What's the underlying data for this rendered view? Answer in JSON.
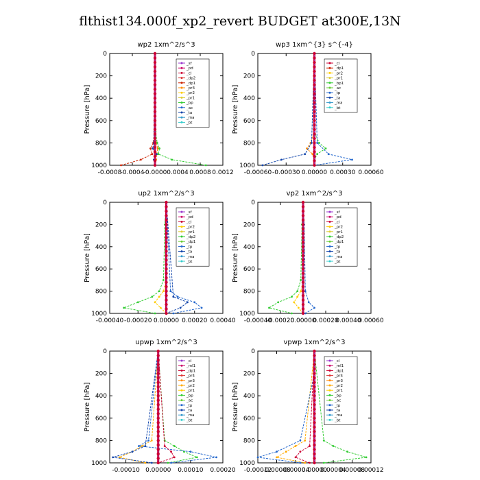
{
  "title": "flthist134.000f_xp2_revert  BUDGET at300E,13N",
  "chart_data": [
    {
      "type": "line",
      "title": "wp2   1xm^2/s^3",
      "ylabel": "Pressure  [hPa]",
      "ylim": [
        1000,
        0
      ],
      "yticks": [
        "0",
        "200",
        "400",
        "600",
        "800",
        "1000"
      ],
      "xlim": [
        -0.0008,
        0.0012
      ],
      "xticks": [
        "-0.0008",
        "-0.0004",
        "-0.0000",
        "0.0004",
        "0.0008",
        "0.0012"
      ],
      "legend": [
        "_sf",
        "_pd",
        "_cl",
        "_dp2",
        "_dp1",
        "_pr3",
        "_pr2",
        "_pr1",
        "_bp",
        "_ac",
        "_ta",
        "_ma",
        "_bt"
      ],
      "legend_colors": [
        "#9933cc",
        "#cc0066",
        "#cc0033",
        "#dd3333",
        "#cc2200",
        "#ff8800",
        "#ffcc00",
        "#ddcc33",
        "#33cc33",
        "#2266cc",
        "#1144aa",
        "#3399cc",
        "#33cccc"
      ],
      "series": [
        {
          "name": "_dp1",
          "color": "#cc2200",
          "p": [
            0,
            700,
            800,
            850,
            900,
            950,
            1000
          ],
          "v": [
            0,
            -1e-05,
            -3e-05,
            -8e-05,
            -5e-05,
            -0.00025,
            -0.0006
          ]
        },
        {
          "name": "_pr3",
          "color": "#ff8800",
          "p": [
            0,
            800,
            850,
            900,
            950,
            1000
          ],
          "v": [
            0,
            2e-05,
            5e-05,
            3e-05,
            2e-05,
            1e-05
          ]
        },
        {
          "name": "_bp",
          "color": "#33cc33",
          "p": [
            0,
            700,
            800,
            850,
            900,
            950,
            1000
          ],
          "v": [
            0,
            1e-05,
            4e-05,
            8e-05,
            6e-05,
            0.0003,
            0.0009
          ]
        },
        {
          "name": "_ta",
          "color": "#1144aa",
          "p": [
            0,
            800,
            850,
            900,
            950,
            1000
          ],
          "v": [
            0,
            -2e-05,
            -4e-05,
            3e-05,
            -2e-05,
            1e-05
          ]
        },
        {
          "name": "_bt",
          "color": "#33cccc",
          "p": [
            0,
            1000
          ],
          "v": [
            0,
            0
          ]
        }
      ]
    },
    {
      "type": "line",
      "title": "wp3   1xm^{3} s^{-4}",
      "ylabel": "Pressure  [hPa]",
      "ylim": [
        1000,
        0
      ],
      "yticks": [
        "0",
        "200",
        "400",
        "600",
        "800",
        "1000"
      ],
      "xlim": [
        -0.0006,
        0.0006
      ],
      "xticks": [
        "-0.00060",
        "-0.00030",
        "0.00000",
        "0.00030",
        "0.00060"
      ],
      "legend": [
        "_cl",
        "_dp1",
        "_pr2",
        "_pr1",
        "_bp1",
        "_ac",
        "_tp",
        "_ta",
        "_ma",
        "_bt"
      ],
      "legend_colors": [
        "#cc0033",
        "#cc2200",
        "#ffcc00",
        "#ddcc33",
        "#33cc33",
        "#66cc33",
        "#2266cc",
        "#1144aa",
        "#3399cc",
        "#33cccc"
      ],
      "series": [
        {
          "name": "_pr2",
          "color": "#ff8800",
          "p": [
            0,
            700,
            800,
            850,
            900,
            950,
            1000
          ],
          "v": [
            0,
            0,
            -4e-05,
            -8e-05,
            -2e-05,
            0,
            0
          ]
        },
        {
          "name": "_bp1",
          "color": "#33cc33",
          "p": [
            0,
            700,
            800,
            850,
            900,
            950,
            1000
          ],
          "v": [
            0,
            0,
            5e-05,
            0.00012,
            3e-05,
            0,
            0
          ]
        },
        {
          "name": "_tp",
          "color": "#2266cc",
          "p": [
            0,
            800,
            900,
            950,
            1000
          ],
          "v": [
            0,
            3e-05,
            0.00015,
            0.0004,
            0
          ]
        },
        {
          "name": "_ta",
          "color": "#1144aa",
          "p": [
            0,
            800,
            900,
            950,
            1000
          ],
          "v": [
            0,
            -3e-05,
            -0.0001,
            -0.00035,
            -0.00055
          ]
        },
        {
          "name": "_cl",
          "color": "#cc0033",
          "p": [
            0,
            1000
          ],
          "v": [
            0,
            0
          ]
        }
      ]
    },
    {
      "type": "line",
      "title": "up2   1xm^2/s^3",
      "ylabel": "Pressure  [hPa]",
      "ylim": [
        1000,
        0
      ],
      "yticks": [
        "0",
        "200",
        "400",
        "600",
        "800",
        "1000"
      ],
      "xlim": [
        -0.0004,
        0.0004
      ],
      "xticks": [
        "-0.00040",
        "-0.00020",
        "0.00000",
        "0.00020",
        "0.00040"
      ],
      "legend": [
        "_sf",
        "_pd",
        "_cl",
        "_pr2",
        "_pr1",
        "_dp2",
        "_dp1",
        "_tp",
        "_ta",
        "_ma",
        "_bt"
      ],
      "legend_colors": [
        "#9933cc",
        "#cc0066",
        "#cc0033",
        "#ffcc00",
        "#ddcc33",
        "#33cc33",
        "#66cc33",
        "#2266cc",
        "#1144aa",
        "#3399cc",
        "#33cccc"
      ],
      "series": [
        {
          "name": "_pr1",
          "color": "#ffcc00",
          "p": [
            0,
            700,
            800,
            850,
            900,
            950,
            1000
          ],
          "v": [
            0,
            0,
            -2e-05,
            -5e-05,
            -8e-05,
            -4e-05,
            0
          ]
        },
        {
          "name": "_dp2",
          "color": "#33cc33",
          "p": [
            0,
            200,
            700,
            800,
            850,
            900,
            950,
            1000
          ],
          "v": [
            0,
            -1e-05,
            -2e-05,
            -5e-05,
            -0.0001,
            -0.0002,
            -0.0003,
            -8e-05
          ]
        },
        {
          "name": "_tp",
          "color": "#2266cc",
          "p": [
            0,
            800,
            850,
            900,
            950,
            1000
          ],
          "v": [
            0,
            3e-05,
            8e-05,
            0.0002,
            0.00025,
            5e-05
          ]
        },
        {
          "name": "_ta",
          "color": "#1144aa",
          "p": [
            0,
            850,
            900,
            950,
            1000
          ],
          "v": [
            0,
            5e-05,
            0.00015,
            0.0001,
            0
          ]
        },
        {
          "name": "_cl",
          "color": "#cc0033",
          "p": [
            0,
            1000
          ],
          "v": [
            0,
            0
          ]
        }
      ]
    },
    {
      "type": "line",
      "title": "vp2   1xm^2/s^3",
      "ylabel": "Pressure  [hPa]",
      "ylim": [
        1000,
        0
      ],
      "yticks": [
        "0",
        "200",
        "400",
        "600",
        "800",
        "1000"
      ],
      "xlim": [
        -0.0004,
        0.0006
      ],
      "xticks": [
        "-0.00040",
        "-0.00020",
        "0.00000",
        "0.00020",
        "0.00040",
        "0.00060"
      ],
      "legend": [
        "_sf",
        "_pd",
        "_cl",
        "_pr2",
        "_pr1",
        "_dp2",
        "_dp1",
        "_tp",
        "_ta",
        "_ma",
        "_bt"
      ],
      "legend_colors": [
        "#9933cc",
        "#cc0066",
        "#cc0033",
        "#ffcc00",
        "#ddcc33",
        "#33cc33",
        "#66cc33",
        "#2266cc",
        "#1144aa",
        "#3399cc",
        "#33cccc"
      ],
      "series": [
        {
          "name": "_pr1",
          "color": "#ffcc00",
          "p": [
            0,
            700,
            800,
            850,
            900,
            950,
            1000
          ],
          "v": [
            0,
            0,
            -2e-05,
            -5e-05,
            -8e-05,
            -4e-05,
            0
          ]
        },
        {
          "name": "_dp2",
          "color": "#33cc33",
          "p": [
            0,
            200,
            700,
            800,
            850,
            900,
            950,
            1000
          ],
          "v": [
            0,
            -1e-05,
            -2e-05,
            -5e-05,
            -0.0001,
            -0.00022,
            -0.0003,
            -0.0001
          ]
        },
        {
          "name": "_tp",
          "color": "#2266cc",
          "p": [
            0,
            200,
            800,
            900,
            950,
            1000
          ],
          "v": [
            0,
            1e-05,
            2e-05,
            5e-05,
            0.0001,
            2e-05
          ]
        },
        {
          "name": "_cl",
          "color": "#cc0033",
          "p": [
            0,
            1000
          ],
          "v": [
            0,
            0
          ]
        }
      ]
    },
    {
      "type": "line",
      "title": "upwp   1xm^2/s^3",
      "ylabel": "Pressure  [hPa]",
      "ylim": [
        1000,
        0
      ],
      "yticks": [
        "0",
        "200",
        "400",
        "600",
        "800",
        "1000"
      ],
      "xlim": [
        -0.00015,
        0.0002
      ],
      "xticks": [
        "-0.00010",
        "0.00000",
        "0.00010",
        "0.00020"
      ],
      "legend": [
        "_cl",
        "_ml1",
        "_dp1",
        "_pr4",
        "_pr3",
        "_pr2",
        "_pr1",
        "_bp",
        "_ac",
        "_tp",
        "_ta",
        "_ma",
        "_bt"
      ],
      "legend_colors": [
        "#9933cc",
        "#cc0066",
        "#cc0033",
        "#dd3333",
        "#ff8800",
        "#ffaa00",
        "#ffcc00",
        "#33cc33",
        "#66cc33",
        "#2266cc",
        "#1144aa",
        "#3399cc",
        "#33cccc"
      ],
      "series": [
        {
          "name": "_pr2",
          "color": "#ffaa00",
          "p": [
            0,
            800,
            850,
            900,
            950,
            1000
          ],
          "v": [
            0,
            -2e-05,
            -5e-05,
            -8e-05,
            -0.00012,
            -4e-05
          ]
        },
        {
          "name": "_bp",
          "color": "#33cc33",
          "p": [
            0,
            800,
            850,
            900,
            950,
            1000
          ],
          "v": [
            0,
            2e-05,
            5e-05,
            8e-05,
            0.00012,
            3e-05
          ]
        },
        {
          "name": "_tp",
          "color": "#2266cc",
          "p": [
            0,
            800,
            850,
            900,
            950,
            1000
          ],
          "v": [
            0,
            -3e-05,
            -6e-05,
            0.0001,
            0.00018,
            4e-05
          ]
        },
        {
          "name": "_ta",
          "color": "#1144aa",
          "p": [
            0,
            850,
            900,
            950,
            1000
          ],
          "v": [
            0,
            -4e-05,
            -8e-05,
            -0.00014,
            -2e-05
          ]
        },
        {
          "name": "_dp1",
          "color": "#cc0033",
          "p": [
            0,
            850,
            900,
            950,
            1000
          ],
          "v": [
            0,
            2e-05,
            4e-05,
            5e-05,
            0
          ]
        }
      ]
    },
    {
      "type": "line",
      "title": "vpwp   1xm^2/s^3",
      "ylabel": "Pressure  [hPa]",
      "ylim": [
        1000,
        0
      ],
      "yticks": [
        "0",
        "200",
        "400",
        "600",
        "800",
        "1000"
      ],
      "xlim": [
        -0.00012,
        0.00012
      ],
      "xticks": [
        "-0.00012",
        "-0.00008",
        "-0.00004",
        "0.00000",
        "0.00004",
        "0.00008",
        "0.00012"
      ],
      "legend": [
        "_cl",
        "_ml1",
        "_dp1",
        "_pr4",
        "_pr3",
        "_pr2",
        "_pr1",
        "_bp",
        "_ac",
        "_tp",
        "_ta",
        "_ma",
        "_bt"
      ],
      "legend_colors": [
        "#9933cc",
        "#cc0066",
        "#cc0033",
        "#dd3333",
        "#ff8800",
        "#ffaa00",
        "#ffcc00",
        "#33cc33",
        "#66cc33",
        "#2266cc",
        "#1144aa",
        "#3399cc",
        "#33cccc"
      ],
      "series": [
        {
          "name": "_pr2",
          "color": "#ffaa00",
          "p": [
            0,
            800,
            850,
            900,
            950,
            1000
          ],
          "v": [
            0,
            -2e-05,
            -4e-05,
            -6e-05,
            -8e-05,
            -2e-05
          ]
        },
        {
          "name": "_bp",
          "color": "#33cc33",
          "p": [
            0,
            800,
            850,
            900,
            950,
            1000
          ],
          "v": [
            0,
            2e-05,
            4e-05,
            7e-05,
            0.00011,
            2e-05
          ]
        },
        {
          "name": "_tp",
          "color": "#2266cc",
          "p": [
            0,
            200,
            800,
            900,
            950,
            1000
          ],
          "v": [
            0,
            0.0,
            -3e-05,
            -8e-05,
            -0.00012,
            -3e-05
          ]
        },
        {
          "name": "_dp1",
          "color": "#cc0033",
          "p": [
            0,
            850,
            900,
            950,
            1000
          ],
          "v": [
            0,
            -1e-05,
            -3e-05,
            -4e-05,
            -1e-05
          ]
        }
      ]
    }
  ]
}
